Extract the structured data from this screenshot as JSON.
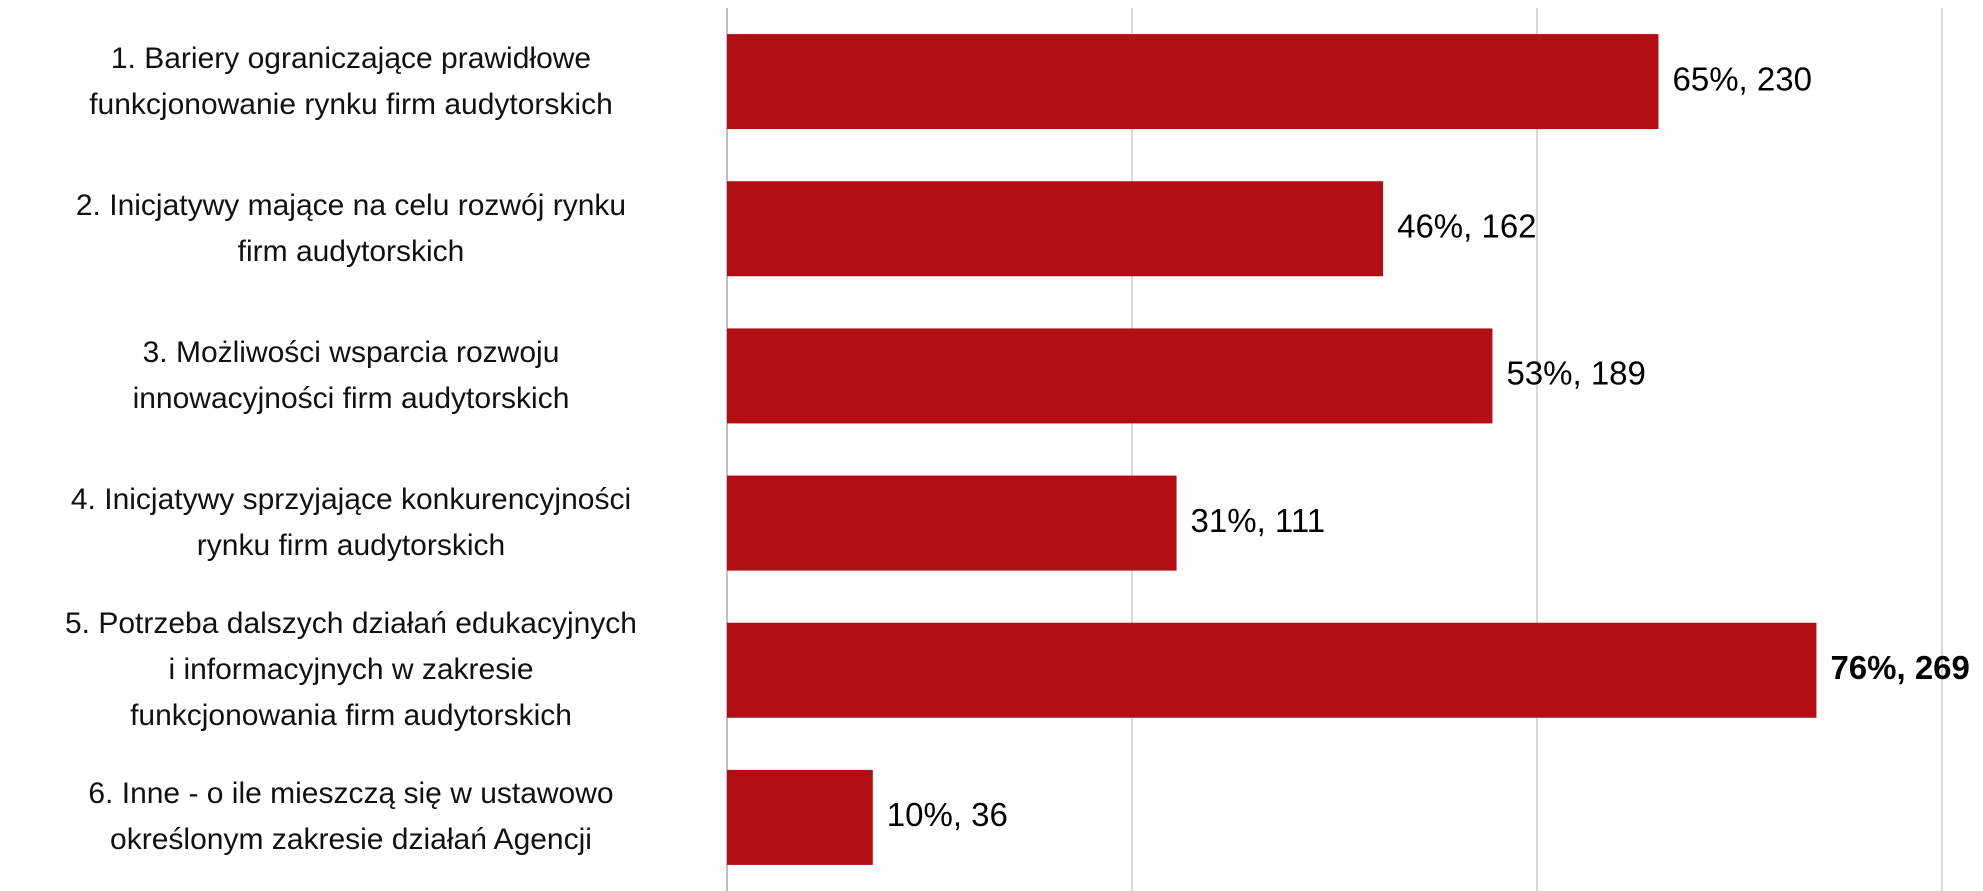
{
  "chart_data": {
    "type": "bar",
    "orientation": "horizontal",
    "categories": [
      "1. Bariery ograniczające prawidłowe\nfunkcjonowanie rynku firm audytorskich",
      "2. Inicjatywy mające na celu rozwój rynku\nfirm audytorskich",
      "3. Możliwości wsparcia rozwoju\ninnowacyjności firm audytorskich",
      "4. Inicjatywy sprzyjające konkurencyjności\nrynku firm audytorskich",
      "5. Potrzeba dalszych działań edukacyjnych\ni informacyjnych w zakresie\nfunkcjonowania firm audytorskich",
      "6. Inne - o ile mieszczą się w ustawowo\nokreślonym zakresie działań Agencji"
    ],
    "values": [
      230,
      162,
      189,
      111,
      269,
      36
    ],
    "value_labels": [
      "65%, 230",
      "46%, 162",
      "53%, 189",
      "31%, 111",
      "76%, 269",
      "10%, 36"
    ],
    "color": "#b10f13",
    "xlim": [
      0,
      300
    ],
    "xticks": [
      0,
      100,
      200,
      300
    ],
    "grid": true
  }
}
